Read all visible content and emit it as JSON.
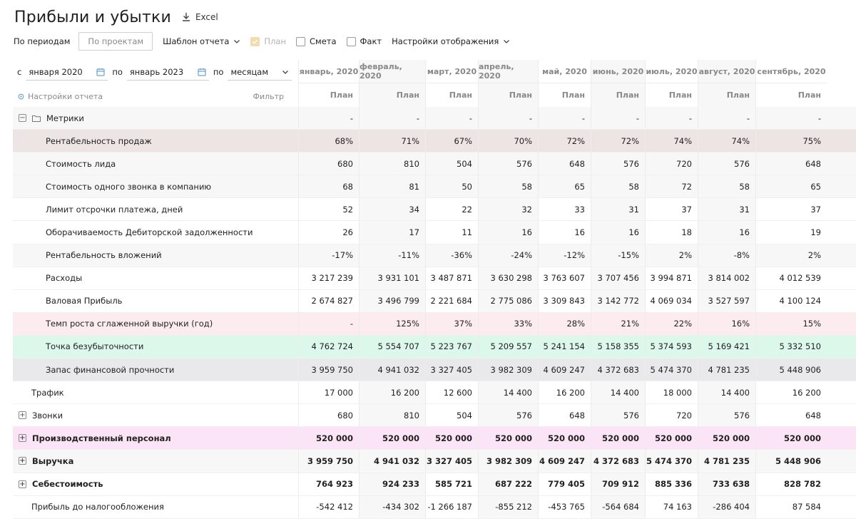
{
  "header": {
    "title": "Прибыли и убытки",
    "excel_label": "Excel"
  },
  "toolbar": {
    "tab_periods": "По периодам",
    "tab_projects": "По проектам",
    "template_label": "Шаблон отчета",
    "check_plan": "План",
    "check_estimate": "Смета",
    "check_fact": "Факт",
    "display_settings": "Настройки отображения"
  },
  "filters": {
    "from_prefix": "с",
    "from_value": "января 2020",
    "to_prefix": "по",
    "to_value": "январь 2023",
    "by_prefix": "по",
    "by_value": "месяцам",
    "report_settings": "Настройки отчета",
    "filter_label": "Фильтр"
  },
  "columns": [
    {
      "month": "январь, 2020",
      "plan": "План"
    },
    {
      "month": "февраль, 2020",
      "plan": "План"
    },
    {
      "month": "март, 2020",
      "plan": "План"
    },
    {
      "month": "апрель, 2020",
      "plan": "План"
    },
    {
      "month": "май, 2020",
      "plan": "План"
    },
    {
      "month": "июнь, 2020",
      "plan": "План"
    },
    {
      "month": "июль, 2020",
      "plan": "План"
    },
    {
      "month": "август, 2020",
      "plan": "План"
    },
    {
      "month": "сентябрь, 2020",
      "plan": "План"
    }
  ],
  "rows": [
    {
      "label": "Метрики",
      "indent": 0,
      "toggle": "−",
      "folder": true,
      "bg": "#f7f7f8",
      "values": [
        "-",
        "-",
        "-",
        "-",
        "-",
        "-",
        "-",
        "-",
        "-"
      ]
    },
    {
      "label": "Рентабельность продаж",
      "indent": 2,
      "bg": "#ede4e4",
      "values": [
        "68%",
        "71%",
        "67%",
        "70%",
        "72%",
        "72%",
        "74%",
        "74%",
        "75%"
      ]
    },
    {
      "label": "Стоимость лида",
      "indent": 2,
      "bg": "#f7f7f8",
      "values": [
        "680",
        "810",
        "504",
        "576",
        "648",
        "576",
        "720",
        "576",
        "648"
      ]
    },
    {
      "label": "Стоимость одного звонка в компанию",
      "indent": 2,
      "bg": "#f7f7f8",
      "values": [
        "68",
        "81",
        "50",
        "58",
        "65",
        "58",
        "72",
        "58",
        "65"
      ]
    },
    {
      "label": "Лимит отсрочки платежа, дней",
      "indent": 2,
      "bg": "#ffffff",
      "values": [
        "52",
        "34",
        "22",
        "32",
        "33",
        "31",
        "37",
        "31",
        "37"
      ]
    },
    {
      "label": "Оборачиваемость Дебиторской задолженности",
      "indent": 2,
      "bg": "#ffffff",
      "values": [
        "26",
        "17",
        "11",
        "16",
        "16",
        "16",
        "18",
        "16",
        "19"
      ]
    },
    {
      "label": "Рентабельность вложений",
      "indent": 2,
      "bg": "#f7f7f8",
      "values": [
        "-17%",
        "-11%",
        "-36%",
        "-24%",
        "-12%",
        "-15%",
        "2%",
        "-8%",
        "2%"
      ]
    },
    {
      "label": "Расходы",
      "indent": 2,
      "bg": "#ffffff",
      "values": [
        "3 217 239",
        "3 931 101",
        "3 487 871",
        "3 630 298",
        "3 763 607",
        "3 707 456",
        "3 994 871",
        "3 814 002",
        "4 012 539"
      ]
    },
    {
      "label": "Валовая Прибыль",
      "indent": 2,
      "bg": "#ffffff",
      "values": [
        "2 674 827",
        "3 496 799",
        "2 221 684",
        "2 775 086",
        "3 309 843",
        "3 142 772",
        "4 069 034",
        "3 527 597",
        "4 100 124"
      ]
    },
    {
      "label": "Темп роста сглаженной выручки (год)",
      "indent": 2,
      "bg": "#fdecef",
      "values": [
        "-",
        "125%",
        "37%",
        "33%",
        "28%",
        "21%",
        "22%",
        "16%",
        "15%"
      ]
    },
    {
      "label": "Точка безубыточности",
      "indent": 2,
      "bg": "#dcf8ea",
      "values": [
        "4 762 724",
        "5 554 707",
        "5 223 767",
        "5 209 557",
        "5 241 154",
        "5 158 355",
        "5 374 593",
        "5 169 421",
        "5 332 510"
      ]
    },
    {
      "label": "Запас финансовой прочности",
      "indent": 2,
      "bg": "#e9e9eb",
      "values": [
        "3 959 750",
        "4 941 032",
        "3 327 405",
        "3 982 309",
        "4 609 247",
        "4 372 683",
        "5 474 370",
        "4 781 235",
        "5 448 906"
      ]
    },
    {
      "label": "Трафик",
      "indent": 1,
      "bg": "#ffffff",
      "values": [
        "17 000",
        "16 200",
        "12 600",
        "14 400",
        "16 200",
        "14 400",
        "18 000",
        "14 400",
        "16 200"
      ]
    },
    {
      "label": "Звонки",
      "indent": 0,
      "toggle": "+",
      "bg": "#ffffff",
      "values": [
        "680",
        "810",
        "504",
        "576",
        "648",
        "576",
        "720",
        "576",
        "648"
      ]
    },
    {
      "label": "Производственный персонал",
      "indent": 0,
      "toggle": "+",
      "bold": true,
      "bg": "#fce4f7",
      "values": [
        "520 000",
        "520 000",
        "520 000",
        "520 000",
        "520 000",
        "520 000",
        "520 000",
        "520 000",
        "520 000"
      ]
    },
    {
      "label": "Выручка",
      "indent": 0,
      "toggle": "+",
      "bold": true,
      "bg": "#f7f7f8",
      "values": [
        "3 959 750",
        "4 941 032",
        "3 327 405",
        "3 982 309",
        "4 609 247",
        "4 372 683",
        "5 474 370",
        "4 781 235",
        "5 448 906"
      ]
    },
    {
      "label": "Себестоимость",
      "indent": 0,
      "toggle": "+",
      "bold": true,
      "bg": "#ffffff",
      "values": [
        "764 923",
        "924 233",
        "585 721",
        "687 222",
        "779 405",
        "709 912",
        "885 336",
        "733 638",
        "828 782"
      ]
    },
    {
      "label": "Прибыль до налогообложения",
      "indent": 1,
      "bg": "#ffffff",
      "values": [
        "-542 412",
        "-434 302",
        "-1 266 187",
        "-855 212",
        "-453 765",
        "-564 684",
        "74 163",
        "-286 404",
        "87 584"
      ]
    }
  ]
}
